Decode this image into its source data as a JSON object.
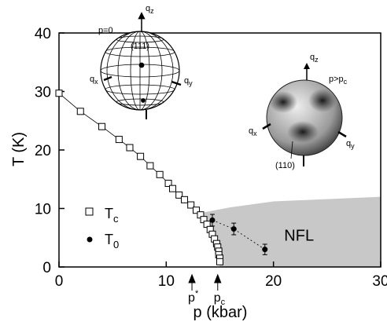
{
  "chart_data": {
    "type": "scatter",
    "xlabel": "p (kbar)",
    "ylabel": "T (K)",
    "xlim": [
      0,
      30
    ],
    "ylim": [
      0,
      40
    ],
    "xticks": [
      0,
      10,
      20,
      30
    ],
    "yticks": [
      0,
      10,
      20,
      30,
      40
    ],
    "series": [
      {
        "name": "T",
        "name_sub": "c",
        "marker": "open-square",
        "color": "#000000",
        "x": [
          0,
          2,
          4,
          5.6,
          6.6,
          7.6,
          8.5,
          9.4,
          10.2,
          10.6,
          11.2,
          11.7,
          12.3,
          12.8,
          13.2,
          13.5,
          13.8,
          14.1,
          14.3,
          14.5,
          14.7,
          14.8,
          14.9,
          14.9,
          15,
          15
        ],
        "values": [
          29.7,
          26.6,
          24,
          21.8,
          20.4,
          18.9,
          17.3,
          15.8,
          14.3,
          13.4,
          12.3,
          11.5,
          10.6,
          9.7,
          8.9,
          8.1,
          7.3,
          6.4,
          5.6,
          4.8,
          4.0,
          3.4,
          2.7,
          2.1,
          1.5,
          0.9
        ]
      },
      {
        "name": "T",
        "name_sub": "0",
        "marker": "filled-circle",
        "color": "#000000",
        "x": [
          14.3,
          16.3,
          19.2
        ],
        "values": [
          8.0,
          6.5,
          3.0
        ],
        "errors": [
          1.0,
          1.0,
          0.9
        ]
      }
    ],
    "nfl_region": {
      "label": "NFL",
      "color": "#c8c8c8",
      "p": [
        13.4,
        15,
        30,
        30,
        20,
        16
      ],
      "T": [
        9.3,
        0,
        0,
        12,
        11.2,
        10.2
      ]
    },
    "markers": [
      {
        "text": "p",
        "sup": "*",
        "x": 12.4
      },
      {
        "text": "p",
        "sub": "c",
        "x": 14.8
      }
    ],
    "insets": {
      "left": {
        "qz": {
          "base": "q",
          "sub": "z"
        },
        "qx": {
          "base": "q",
          "sub": "x"
        },
        "qy": {
          "base": "q",
          "sub": "y"
        },
        "pressure": "p=0",
        "direction": "(111)"
      },
      "right": {
        "qz": {
          "base": "q",
          "sub": "z"
        },
        "qx": {
          "base": "q",
          "sub": "x"
        },
        "qy": {
          "base": "q",
          "sub": "y"
        },
        "pressure": {
          "base": "p>p",
          "sub": "c"
        },
        "direction": "(110)"
      }
    }
  }
}
